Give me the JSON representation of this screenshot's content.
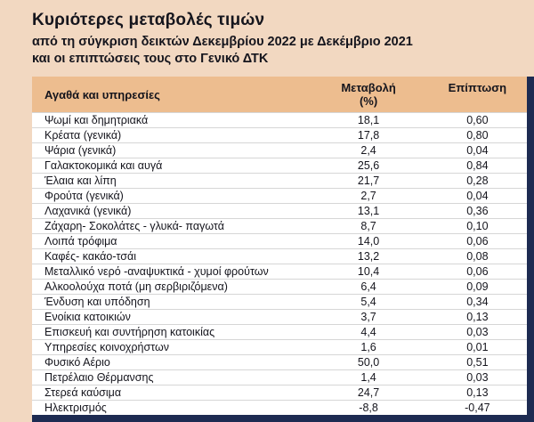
{
  "header": {
    "title": "Κυριότερες μεταβολές τιμών",
    "subtitle_line1": "από τη σύγκριση δεικτών Δεκεμβρίου 2022 με Δεκέμβριο 2021",
    "subtitle_line2": "και οι επιπτώσεις τους στο Γενικό ΔΤΚ"
  },
  "table": {
    "headers": {
      "goods": "Αγαθά και υπηρεσίες",
      "change_line1": "Μεταβολή",
      "change_line2": "(%)",
      "impact": "Επίπτωση"
    }
  },
  "colors": {
    "page_background": "#f2d8c1",
    "table_header_background": "#edbd8f",
    "row_background": "#ffffff",
    "accent_navy_border": "#1d2b52",
    "text": "#15151d"
  },
  "chart_data": {
    "type": "table",
    "title": "Κυριότερες μεταβολές τιμών",
    "subtitle": "από τη σύγκριση δεικτών Δεκεμβρίου 2022 με Δεκέμβριο 2021 και οι επιπτώσεις τους στο Γενικό ΔΤΚ",
    "columns": [
      "Αγαθά και υπηρεσίες",
      "Μεταβολή (%)",
      "Επίπτωση"
    ],
    "rows": [
      [
        "Ψωμί και δημητριακά",
        "18,1",
        "0,60"
      ],
      [
        "Κρέατα (γενικά)",
        "17,8",
        "0,80"
      ],
      [
        "Ψάρια  (γενικά)",
        "2,4",
        "0,04"
      ],
      [
        "Γαλακτοκομικά και αυγά",
        "25,6",
        "0,84"
      ],
      [
        "Έλαια και λίπη",
        "21,7",
        "0,28"
      ],
      [
        "Φρούτα (γενικά)",
        "2,7",
        "0,04"
      ],
      [
        "Λαχανικά (γενικά)",
        "13,1",
        "0,36"
      ],
      [
        "Ζάχαρη- Σοκολάτες - γλυκά- παγωτά",
        "8,7",
        "0,10"
      ],
      [
        "Λοιπά τρόφιμα",
        "14,0",
        "0,06"
      ],
      [
        "Καφές- κακάο-τσάι",
        "13,2",
        "0,08"
      ],
      [
        "Μεταλλικό νερό -αναψυκτικά - χυμοί φρούτων",
        "10,4",
        "0,06"
      ],
      [
        "Αλκοολούχα ποτά (μη σερβιριζόμενα)",
        "6,4",
        "0,09"
      ],
      [
        "Ένδυση και υπόδηση",
        "5,4",
        "0,34"
      ],
      [
        "Ενοίκια κατοικιών",
        "3,7",
        "0,13"
      ],
      [
        "Επισκευή και συντήρηση κατοικίας",
        "4,4",
        "0,03"
      ],
      [
        "Υπηρεσίες κοινοχρήστων",
        "1,6",
        "0,01"
      ],
      [
        "Φυσικό Αέριο",
        "50,0",
        "0,51"
      ],
      [
        "Πετρέλαιο Θέρμανσης",
        "1,4",
        "0,03"
      ],
      [
        "Στερεά καύσιμα",
        "24,7",
        "0,13"
      ],
      [
        "Ηλεκτρισμός",
        "-8,8",
        "-0,47"
      ]
    ]
  }
}
